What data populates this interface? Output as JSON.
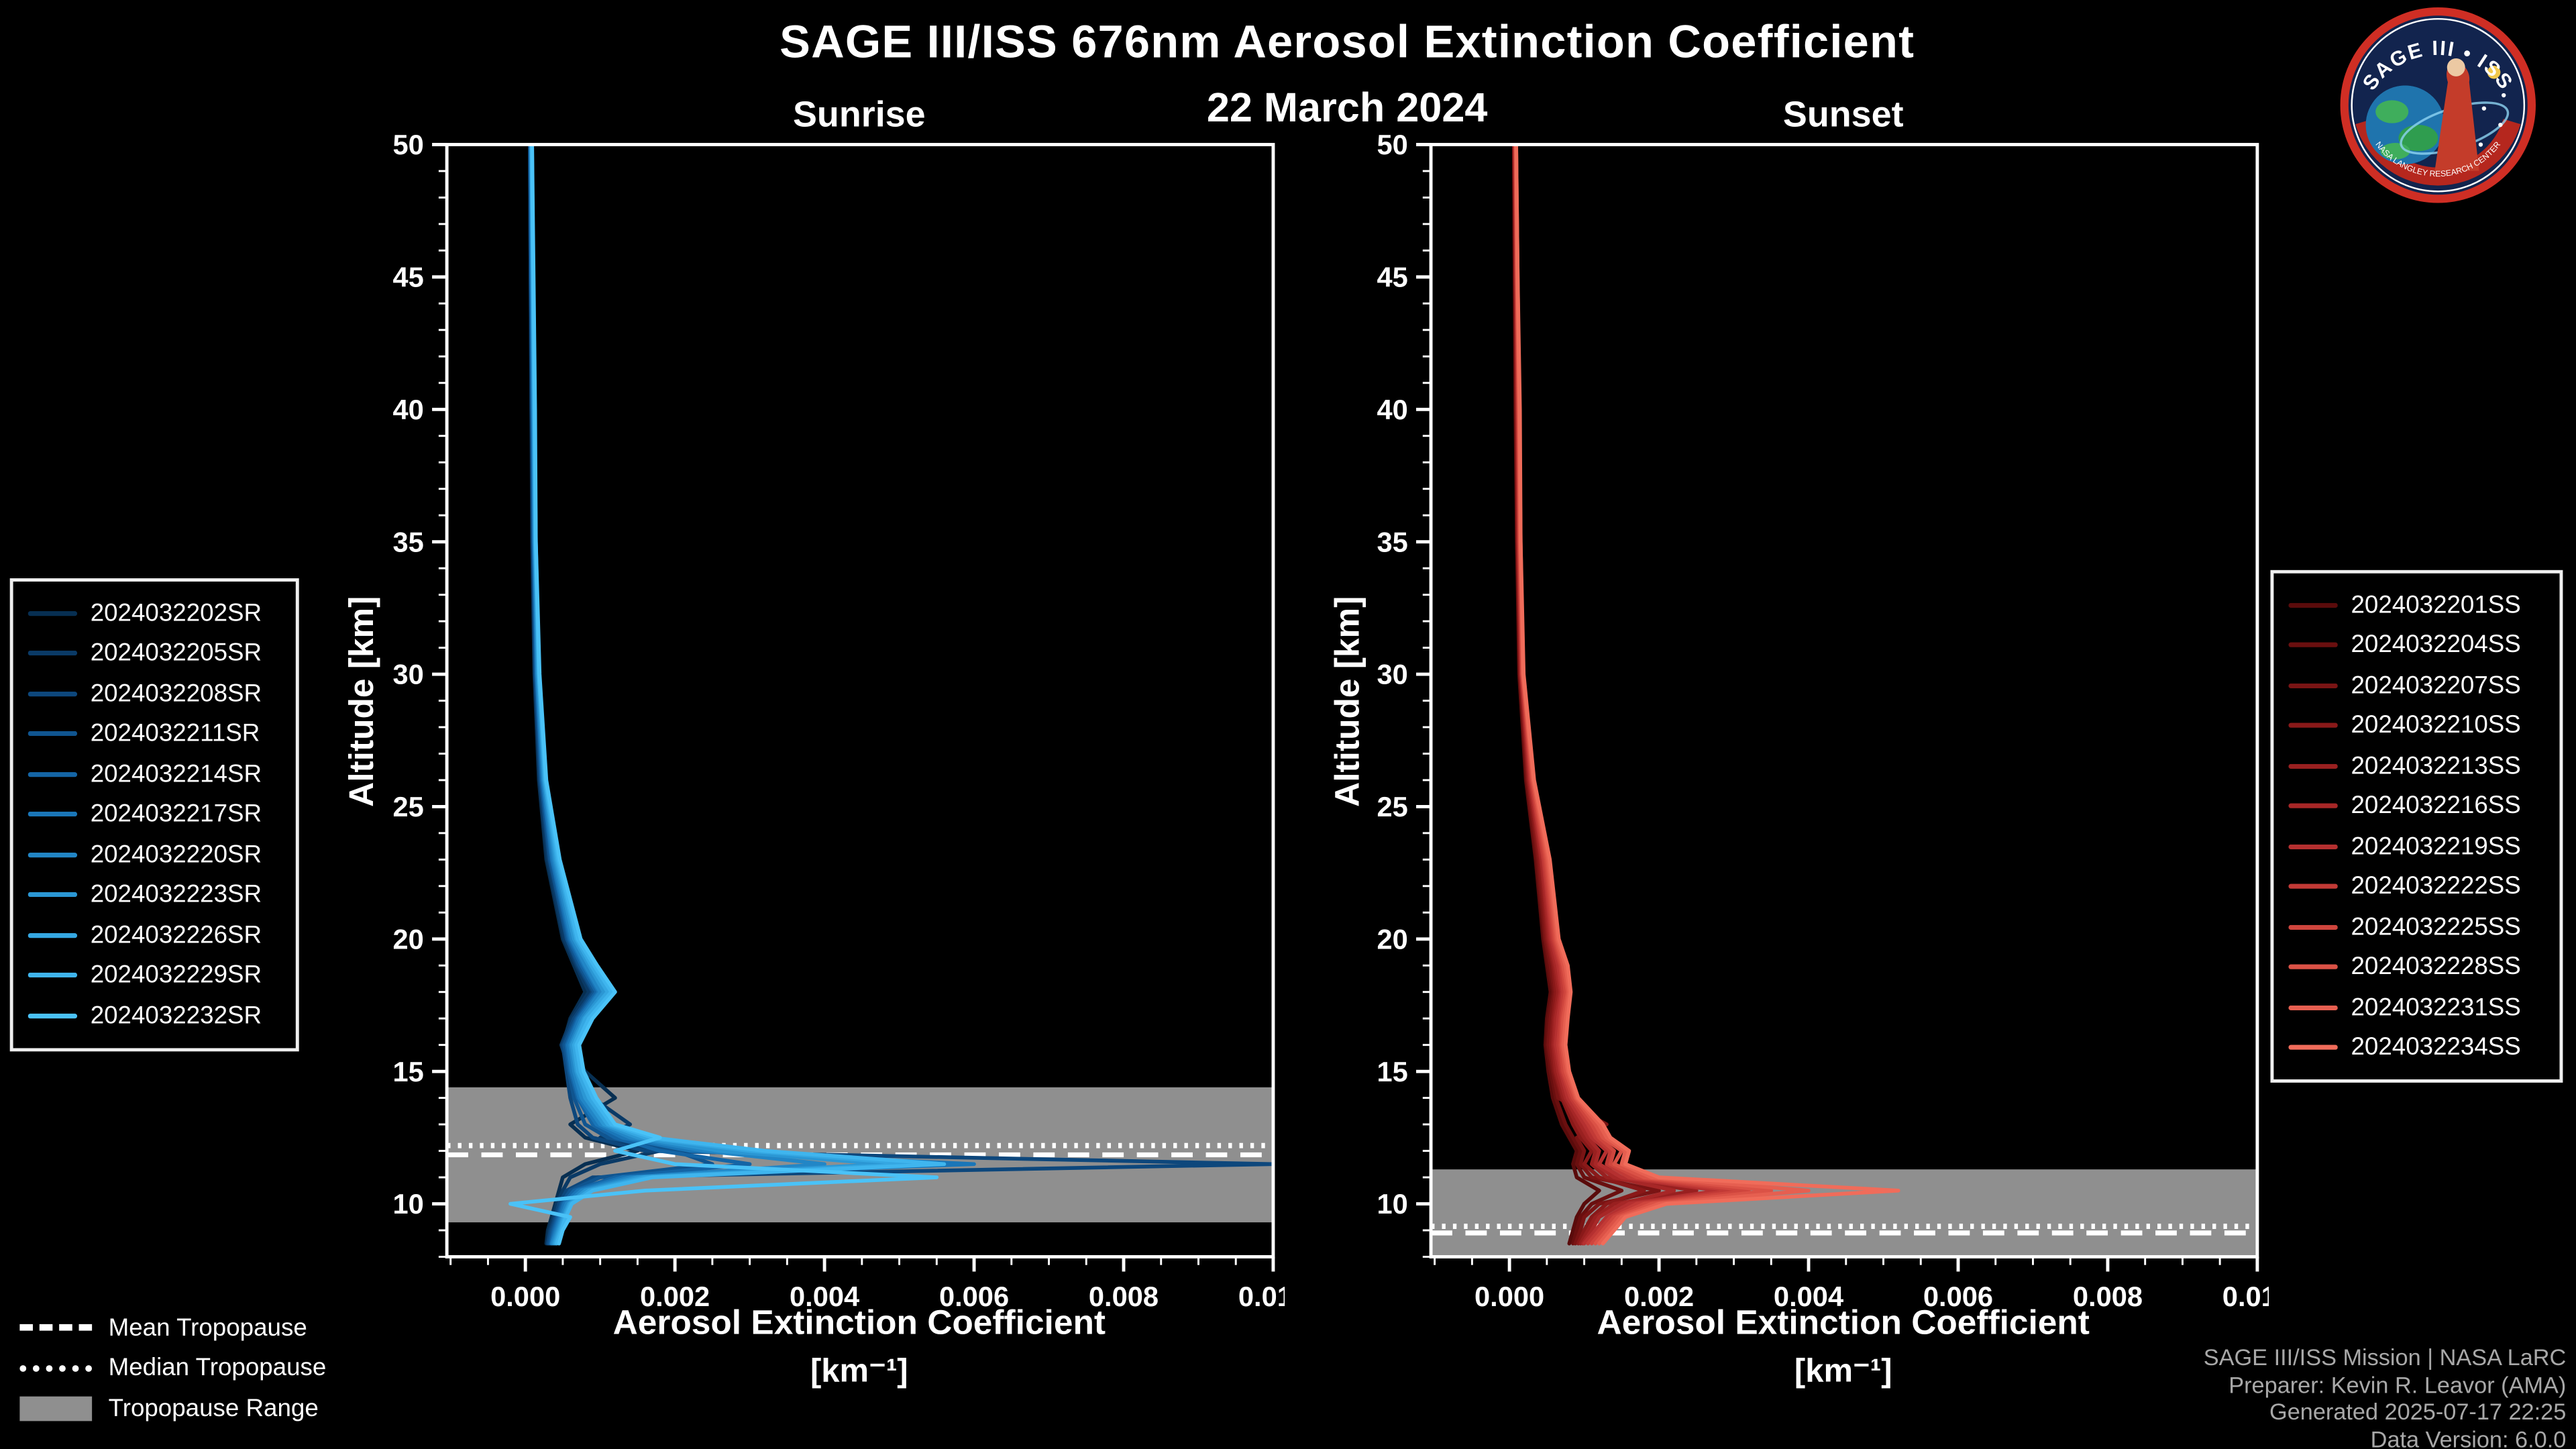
{
  "title": "SAGE III/ISS 676nm Aerosol Extinction Coefficient",
  "date": "22 March 2024",
  "tropopause_legend": {
    "mean": "Mean Tropopause",
    "median": "Median Tropopause",
    "range": "Tropopause Range"
  },
  "credits": [
    "SAGE III/ISS Mission | NASA LaRC",
    "Preparer: Kevin R. Leavor (AMA)",
    "Generated 2025-07-17 22:25",
    "Data Version: 6.0.0"
  ],
  "logo": {
    "text": "SAGE III • ISS",
    "subtext": "NASA LANGLEY RESEARCH CENTER"
  },
  "colors": {
    "background": "#000000",
    "text": "#ffffff",
    "credits_text": "#a8a8a8",
    "tropopause_band": "#8f8f8f",
    "tropopause_lines": "#ffffff"
  },
  "chart_data": {
    "type": "line",
    "axis": {
      "xlabel": "Aerosol Extinction Coefficient",
      "xlabel_units": "[km⁻¹]",
      "ylabel": "Altitude [km]",
      "xlim": [
        -0.00105,
        0.01
      ],
      "ylim": [
        8,
        50
      ],
      "xticks": [
        0,
        0.002,
        0.004,
        0.006,
        0.008,
        0.01
      ],
      "xtick_labels": [
        "0.000",
        "0.002",
        "0.004",
        "0.006",
        "0.008",
        "0.010"
      ],
      "yticks": [
        50,
        45,
        40,
        35,
        30,
        25,
        20,
        15,
        10
      ],
      "grid": false
    },
    "altitudes": [
      50,
      45,
      40,
      35,
      30,
      26,
      23,
      20,
      19,
      18,
      17,
      16,
      15,
      14,
      13,
      12.5,
      12,
      11.5,
      11,
      10.5,
      10,
      9.5,
      9,
      8.5
    ],
    "panels": [
      {
        "key": "sunrise",
        "title": "Sunrise",
        "tropopause": {
          "mean": 11.85,
          "median": 12.2,
          "range": [
            9.3,
            14.4
          ]
        },
        "series": [
          {
            "name": "2024032202SR",
            "color": "#072f52",
            "values": [
              6e-05,
              7e-05,
              8e-05,
              9e-05,
              0.00012,
              0.00018,
              0.00028,
              0.0005,
              0.00065,
              0.0008,
              0.0006,
              0.0005,
              0.0008,
              0.0012,
              0.0006,
              0.0008,
              0.0015,
              0.0008,
              0.0005,
              0.00045,
              0.0004,
              0.00035,
              0.0003,
              0.00028
            ]
          },
          {
            "name": "2024032205SR",
            "color": "#0a3a66",
            "values": [
              6e-05,
              7e-05,
              8e-05,
              0.0001,
              0.00013,
              0.00019,
              0.0003,
              0.00052,
              0.00068,
              0.00085,
              0.00062,
              0.00048,
              0.0006,
              0.0009,
              0.0014,
              0.001,
              0.0018,
              0.001,
              0.0006,
              0.0005,
              0.00042,
              0.00038,
              0.00032,
              0.0003
            ]
          },
          {
            "name": "2024032208SR",
            "color": "#0d477c",
            "values": [
              6e-05,
              7e-05,
              9e-05,
              0.0001,
              0.00013,
              0.0002,
              0.00032,
              0.00055,
              0.0007,
              0.0009,
              0.00065,
              0.0005,
              0.00055,
              0.0006,
              0.0007,
              0.0009,
              0.0016,
              0.01,
              0.0009,
              0.00055,
              0.00045,
              0.0004,
              0.00034,
              0.0003
            ]
          },
          {
            "name": "2024032211SR",
            "color": "#105590",
            "values": [
              7e-05,
              8e-05,
              9e-05,
              0.00011,
              0.00014,
              0.00021,
              0.00033,
              0.00056,
              0.00072,
              0.00092,
              0.00068,
              0.00052,
              0.00058,
              0.00065,
              0.0008,
              0.0011,
              0.002,
              0.0025,
              0.001,
              0.0006,
              0.00048,
              0.00042,
              0.00036,
              0.00032
            ]
          },
          {
            "name": "2024032214SR",
            "color": "#1465a6",
            "values": [
              7e-05,
              8e-05,
              0.0001,
              0.00011,
              0.00015,
              0.00022,
              0.00035,
              0.00058,
              0.00075,
              0.00095,
              0.0007,
              0.00055,
              0.0006,
              0.0007,
              0.0009,
              0.0012,
              0.0018,
              0.003,
              0.0012,
              0.00065,
              0.0005,
              0.00044,
              0.00038,
              0.00034
            ]
          },
          {
            "name": "2024032217SR",
            "color": "#1a76b8",
            "values": [
              7e-05,
              9e-05,
              0.0001,
              0.00012,
              0.00015,
              0.00023,
              0.00036,
              0.0006,
              0.00078,
              0.00098,
              0.00072,
              0.00057,
              0.00062,
              0.00072,
              0.00095,
              0.0013,
              0.0022,
              0.006,
              0.0013,
              0.0007,
              0.00052,
              0.00046,
              0.0004,
              0.00035
            ]
          },
          {
            "name": "2024032220SR",
            "color": "#2286c6",
            "values": [
              8e-05,
              9e-05,
              0.00011,
              0.00012,
              0.00016,
              0.00024,
              0.00038,
              0.00062,
              0.0008,
              0.001,
              0.00075,
              0.0006,
              0.00065,
              0.00075,
              0.001,
              0.0014,
              0.0024,
              0.004,
              0.0014,
              0.00075,
              0.00055,
              0.00048,
              0.00042,
              0.00036
            ]
          },
          {
            "name": "2024032223SR",
            "color": "#2b97d4",
            "values": [
              8e-05,
              0.0001,
              0.00011,
              0.00013,
              0.00017,
              0.00025,
              0.0004,
              0.00065,
              0.00085,
              0.00105,
              0.00078,
              0.00062,
              0.00068,
              0.0008,
              0.00105,
              0.0015,
              0.0026,
              0.0048,
              0.0015,
              0.0008,
              0.00058,
              0.0005,
              0.00044,
              0.00038
            ]
          },
          {
            "name": "2024032226SR",
            "color": "#35a7e2",
            "values": [
              8e-05,
              0.0001,
              0.00012,
              0.00013,
              0.00018,
              0.00026,
              0.00042,
              0.00068,
              0.00088,
              0.0011,
              0.0008,
              0.00065,
              0.0007,
              0.00085,
              0.0011,
              0.0016,
              0.003,
              0.0052,
              0.0016,
              0.00085,
              0.0006,
              0.00052,
              0.00046,
              0.0004
            ]
          },
          {
            "name": "2024032229SR",
            "color": "#3fb5ee",
            "values": [
              9e-05,
              0.0001,
              0.00012,
              0.00014,
              0.00018,
              0.00027,
              0.00044,
              0.0007,
              0.00092,
              0.00115,
              0.00085,
              0.00068,
              0.00074,
              0.0009,
              0.00115,
              0.0017,
              0.0032,
              0.0056,
              0.0017,
              0.0009,
              0.00062,
              0.00054,
              0.00048,
              0.00042
            ]
          },
          {
            "name": "2024032232SR",
            "color": "#4ac2f7",
            "values": [
              9e-05,
              0.00011,
              0.00013,
              0.00014,
              0.00019,
              0.00028,
              0.00046,
              0.00074,
              0.00096,
              0.0012,
              0.0009,
              0.00072,
              0.00078,
              0.00095,
              0.0012,
              0.0018,
              0.0012,
              0.002,
              0.0055,
              0.0016,
              -0.0002,
              0.0006,
              0.0005,
              0.00045
            ]
          }
        ]
      },
      {
        "key": "sunset",
        "title": "Sunset",
        "tropopause": {
          "mean": 8.9,
          "median": 9.15,
          "range": [
            8.0,
            11.3
          ]
        },
        "series": [
          {
            "name": "2024032201SS",
            "color": "#5a0b0b",
            "values": [
              6e-05,
              7e-05,
              8e-05,
              0.0001,
              0.00013,
              0.00022,
              0.00035,
              0.00045,
              0.0005,
              0.00055,
              0.0005,
              0.00048,
              0.00052,
              0.00058,
              0.0007,
              0.0008,
              0.0009,
              0.00085,
              0.0009,
              0.0012,
              0.001,
              0.0009,
              0.00085,
              0.0008
            ]
          },
          {
            "name": "2024032204SS",
            "color": "#6a0f0f",
            "values": [
              6e-05,
              7e-05,
              9e-05,
              0.0001,
              0.00014,
              0.00023,
              0.00036,
              0.00047,
              0.00052,
              0.00058,
              0.00052,
              0.0005,
              0.00055,
              0.00062,
              0.00075,
              0.00085,
              0.00095,
              0.0009,
              0.001,
              0.0015,
              0.0011,
              0.00095,
              0.0009,
              0.00085
            ]
          },
          {
            "name": "2024032207SS",
            "color": "#7a1414",
            "values": [
              6e-05,
              8e-05,
              9e-05,
              0.00011,
              0.00014,
              0.00024,
              0.00038,
              0.00048,
              0.00055,
              0.0006,
              0.00055,
              0.00052,
              0.00058,
              0.00065,
              0.0013,
              0.0009,
              0.001,
              0.00095,
              0.0011,
              0.002,
              0.0012,
              0.001,
              0.00095,
              0.00088
            ]
          },
          {
            "name": "2024032210SS",
            "color": "#8a1919",
            "values": [
              7e-05,
              8e-05,
              0.0001,
              0.00011,
              0.00015,
              0.00025,
              0.0004,
              0.0005,
              0.00058,
              0.00062,
              0.00058,
              0.00055,
              0.0006,
              0.0007,
              0.00085,
              0.00095,
              0.0011,
              0.001,
              0.0012,
              0.0018,
              0.0013,
              0.0011,
              0.001,
              0.00092
            ]
          },
          {
            "name": "2024032213SS",
            "color": "#992020",
            "values": [
              7e-05,
              9e-05,
              0.0001,
              0.00012,
              0.00015,
              0.00026,
              0.00042,
              0.00052,
              0.0006,
              0.00065,
              0.0006,
              0.00058,
              0.00062,
              0.00072,
              0.0009,
              0.001,
              0.00115,
              0.0011,
              0.0013,
              0.0025,
              0.0014,
              0.00115,
              0.00105,
              0.00095
            ]
          },
          {
            "name": "2024032216SS",
            "color": "#a72727",
            "values": [
              7e-05,
              9e-05,
              0.00011,
              0.00012,
              0.00016,
              0.00027,
              0.00043,
              0.00054,
              0.00062,
              0.00068,
              0.00062,
              0.0006,
              0.00065,
              0.00075,
              0.00095,
              0.00105,
              0.0012,
              0.00115,
              0.0014,
              0.0022,
              0.0015,
              0.0012,
              0.0011,
              0.00098
            ]
          },
          {
            "name": "2024032219SS",
            "color": "#b53030",
            "values": [
              8e-05,
              9e-05,
              0.00011,
              0.00013,
              0.00016,
              0.00028,
              0.00045,
              0.00056,
              0.00065,
              0.0007,
              0.00065,
              0.00062,
              0.00068,
              0.00078,
              0.001,
              0.0011,
              0.0013,
              0.0012,
              0.0015,
              0.0028,
              0.0016,
              0.0013,
              0.00115,
              0.001
            ]
          },
          {
            "name": "2024032222SS",
            "color": "#c23a36",
            "values": [
              8e-05,
              0.0001,
              0.00012,
              0.00013,
              0.00017,
              0.00029,
              0.00046,
              0.00058,
              0.00068,
              0.00072,
              0.00068,
              0.00065,
              0.0007,
              0.00082,
              0.00105,
              0.00115,
              0.00135,
              0.0013,
              0.0016,
              0.003,
              0.0017,
              0.00135,
              0.0012,
              0.00105
            ]
          },
          {
            "name": "2024032225SS",
            "color": "#cf453d",
            "values": [
              8e-05,
              0.0001,
              0.00012,
              0.00014,
              0.00017,
              0.0003,
              0.00048,
              0.0006,
              0.0007,
              0.00075,
              0.0007,
              0.00068,
              0.00072,
              0.00085,
              0.0011,
              0.0012,
              0.0014,
              0.00135,
              0.0017,
              0.0032,
              0.0018,
              0.0014,
              0.00125,
              0.0011
            ]
          },
          {
            "name": "2024032228SS",
            "color": "#db5246",
            "values": [
              9e-05,
              0.0001,
              0.00013,
              0.00014,
              0.00018,
              0.00031,
              0.0005,
              0.00062,
              0.00072,
              0.00078,
              0.00072,
              0.0007,
              0.00075,
              0.00088,
              0.00115,
              0.00125,
              0.0015,
              0.0014,
              0.0018,
              0.0035,
              0.0019,
              0.00145,
              0.0013,
              0.00115
            ]
          },
          {
            "name": "2024032231SS",
            "color": "#e65f50",
            "values": [
              9e-05,
              0.00011,
              0.00013,
              0.00015,
              0.00018,
              0.00032,
              0.00052,
              0.00064,
              0.00075,
              0.0008,
              0.00075,
              0.00072,
              0.00078,
              0.0009,
              0.0012,
              0.0013,
              0.00155,
              0.0015,
              0.0019,
              0.004,
              0.002,
              0.0015,
              0.00135,
              0.0012
            ]
          },
          {
            "name": "2024032234SS",
            "color": "#f06c5a",
            "values": [
              9e-05,
              0.00011,
              0.00014,
              0.00015,
              0.00019,
              0.00033,
              0.00054,
              0.00066,
              0.00078,
              0.00082,
              0.00078,
              0.00075,
              0.0008,
              0.00092,
              0.00125,
              0.00135,
              0.0016,
              0.00155,
              0.002,
              0.0052,
              0.0021,
              0.00155,
              0.0014,
              0.00125
            ]
          }
        ]
      }
    ]
  }
}
